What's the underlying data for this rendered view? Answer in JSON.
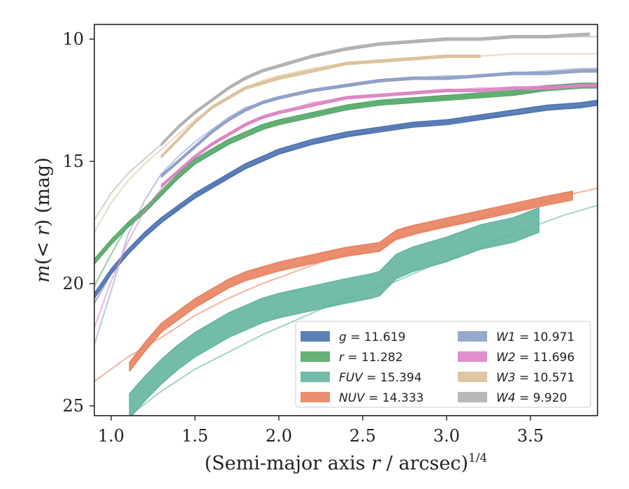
{
  "chart_data": {
    "type": "line",
    "xlabel": "(Semi-major axis r / arcsec)^(1/4)",
    "ylabel": "m(< r) (mag)",
    "xlim": [
      0.9,
      3.9
    ],
    "ylim": [
      25.4,
      9.4
    ],
    "y_inverted": true,
    "xticks": [
      1.0,
      1.5,
      2.0,
      2.5,
      3.0,
      3.5
    ],
    "xtick_labels": [
      "1.0",
      "1.5",
      "2.0",
      "2.5",
      "3.0",
      "3.5"
    ],
    "yticks": [
      10,
      15,
      20,
      25
    ],
    "ytick_labels": [
      "10",
      "15",
      "20",
      "25"
    ],
    "grid": false,
    "legend_position": "lower-right",
    "series": [
      {
        "name": "g = 11.619",
        "label_var": "g",
        "label_val": "11.619",
        "color": "#4c72b0",
        "x": [
          0.9,
          1.0,
          1.1,
          1.2,
          1.3,
          1.4,
          1.5,
          1.6,
          1.7,
          1.8,
          1.9,
          2.0,
          2.2,
          2.4,
          2.6,
          2.8,
          3.0,
          3.2,
          3.4,
          3.6,
          3.8,
          3.9
        ],
        "y": [
          20.5,
          19.5,
          18.7,
          18.0,
          17.4,
          16.9,
          16.4,
          16.0,
          15.6,
          15.2,
          14.9,
          14.6,
          14.2,
          13.9,
          13.7,
          13.5,
          13.4,
          13.2,
          13.0,
          12.8,
          12.7,
          12.6
        ],
        "band": 0.1,
        "model": [
          20.8,
          19.6,
          18.8,
          18.1,
          17.5,
          16.9,
          16.5,
          16.0,
          15.6,
          15.3,
          15.0,
          14.7,
          14.3,
          14.0,
          13.7,
          13.5,
          13.4,
          13.2,
          13.1,
          12.9,
          12.8,
          12.7
        ]
      },
      {
        "name": "r = 11.282",
        "label_var": "r",
        "label_val": "11.282",
        "color": "#55a868",
        "x": [
          0.9,
          1.0,
          1.1,
          1.2,
          1.3,
          1.4,
          1.5,
          1.6,
          1.7,
          1.8,
          1.9,
          2.0,
          2.2,
          2.4,
          2.6,
          2.8,
          3.0,
          3.2,
          3.4,
          3.6,
          3.8,
          3.9
        ],
        "y": [
          19.1,
          18.3,
          17.6,
          17.0,
          16.3,
          15.6,
          15.0,
          14.6,
          14.2,
          13.9,
          13.6,
          13.4,
          13.1,
          12.8,
          12.6,
          12.5,
          12.4,
          12.3,
          12.2,
          12.0,
          11.9,
          11.9
        ],
        "band": 0.1,
        "model": [
          20.1,
          18.8,
          17.6,
          16.9,
          16.3,
          15.7,
          15.1,
          14.7,
          14.3,
          14.0,
          13.7,
          13.4,
          13.1,
          12.8,
          12.6,
          12.5,
          12.4,
          12.3,
          12.2,
          12.1,
          12.0,
          11.9
        ]
      },
      {
        "name": "FUV = 15.394",
        "label_var": "FUV",
        "label_val": "15.394",
        "color": "#64b5a0",
        "x": [
          1.11,
          1.2,
          1.3,
          1.4,
          1.5,
          1.6,
          1.7,
          1.8,
          1.9,
          2.0,
          2.2,
          2.4,
          2.55,
          2.6,
          2.7,
          2.8,
          3.0,
          3.2,
          3.4,
          3.55
        ],
        "y": [
          25.0,
          24.3,
          23.6,
          23.0,
          22.5,
          22.1,
          21.7,
          21.4,
          21.1,
          20.9,
          20.6,
          20.3,
          20.1,
          20.0,
          19.3,
          19.0,
          18.6,
          18.1,
          17.8,
          17.4
        ],
        "band": 0.5,
        "model_x": [
          1.11,
          1.3,
          1.5,
          1.7,
          1.9,
          2.1,
          2.3,
          2.5,
          2.7,
          2.9,
          3.1,
          3.3,
          3.5,
          3.7,
          3.9
        ],
        "model": [
          25.4,
          24.4,
          23.5,
          22.8,
          22.1,
          21.5,
          20.9,
          20.4,
          19.9,
          19.3,
          18.8,
          18.2,
          17.7,
          17.2,
          16.8
        ]
      },
      {
        "name": "NUV = 14.333",
        "label_var": "NUV",
        "label_val": "14.333",
        "color": "#e8825f",
        "x": [
          1.11,
          1.2,
          1.3,
          1.4,
          1.5,
          1.6,
          1.7,
          1.8,
          1.9,
          2.0,
          2.2,
          2.4,
          2.6,
          2.7,
          2.8,
          3.0,
          3.2,
          3.4,
          3.6,
          3.75
        ],
        "y": [
          23.4,
          22.6,
          21.8,
          21.3,
          20.8,
          20.4,
          20.0,
          19.7,
          19.5,
          19.3,
          19.0,
          18.7,
          18.5,
          18.0,
          17.8,
          17.5,
          17.2,
          16.9,
          16.6,
          16.4
        ],
        "band": 0.18,
        "model_x": [
          0.9,
          1.1,
          1.3,
          1.5,
          1.7,
          1.9,
          2.1,
          2.3,
          2.5,
          2.7,
          2.9,
          3.1,
          3.3,
          3.5,
          3.7,
          3.9
        ],
        "model": [
          24.0,
          23.0,
          22.2,
          21.3,
          20.6,
          20.0,
          19.5,
          19.0,
          18.6,
          18.2,
          17.8,
          17.5,
          17.1,
          16.8,
          16.4,
          16.1
        ]
      },
      {
        "name": "W1 = 10.971",
        "label_var": "W1",
        "label_val": "10.971",
        "color": "#8c9ec8",
        "x": [
          1.3,
          1.4,
          1.5,
          1.6,
          1.7,
          1.8,
          1.9,
          2.0,
          2.2,
          2.4,
          2.6,
          2.8,
          3.0,
          3.2,
          3.4,
          3.6,
          3.8,
          3.9
        ],
        "y": [
          15.6,
          15.0,
          14.4,
          13.8,
          13.3,
          12.9,
          12.6,
          12.4,
          12.1,
          11.9,
          11.7,
          11.6,
          11.6,
          11.5,
          11.4,
          11.4,
          11.3,
          11.3
        ],
        "band": 0.05,
        "model_x": [
          0.9,
          1.0,
          1.1,
          1.2,
          1.3,
          1.4,
          1.5,
          1.6,
          1.7,
          1.8,
          1.9,
          2.0,
          2.2,
          2.4,
          2.6,
          2.8,
          3.0,
          3.2,
          3.4,
          3.6,
          3.8,
          3.9
        ],
        "model": [
          22.5,
          20.3,
          18.0,
          16.6,
          15.5,
          14.8,
          14.2,
          13.7,
          13.2,
          12.8,
          12.6,
          12.4,
          12.1,
          11.9,
          11.7,
          11.6,
          11.5,
          11.5,
          11.4,
          11.3,
          11.2,
          11.2
        ]
      },
      {
        "name": "W2 = 11.696",
        "label_var": "W2",
        "label_val": "11.696",
        "color": "#dd84c4",
        "x": [
          1.3,
          1.4,
          1.5,
          1.6,
          1.7,
          1.8,
          1.9,
          2.0,
          2.2,
          2.4,
          2.6,
          2.8,
          3.0,
          3.2,
          3.4,
          3.6,
          3.8,
          3.9
        ],
        "y": [
          16.0,
          15.4,
          14.8,
          14.3,
          13.9,
          13.5,
          13.2,
          13.0,
          12.7,
          12.4,
          12.3,
          12.2,
          12.1,
          12.1,
          12.0,
          12.0,
          11.9,
          11.9
        ],
        "band": 0.05,
        "model_x": [
          0.9,
          1.0,
          1.1,
          1.2,
          1.3,
          1.4,
          1.5,
          1.6,
          1.7,
          1.8,
          1.9,
          2.0,
          2.2,
          2.4,
          2.6,
          2.8,
          3.0,
          3.2,
          3.4,
          3.6,
          3.8,
          3.9
        ],
        "model": [
          21.8,
          19.9,
          18.3,
          17.0,
          16.1,
          15.4,
          14.8,
          14.3,
          13.9,
          13.5,
          13.2,
          13.0,
          12.6,
          12.4,
          12.3,
          12.2,
          12.1,
          12.0,
          12.0,
          11.9,
          11.9,
          11.8
        ]
      },
      {
        "name": "W3 = 10.571",
        "label_var": "W3",
        "label_val": "10.571",
        "color": "#dcc19a",
        "x": [
          1.3,
          1.4,
          1.5,
          1.6,
          1.7,
          1.8,
          1.9,
          2.0,
          2.2,
          2.4,
          2.6,
          2.8,
          3.0,
          3.2
        ],
        "y": [
          14.8,
          14.1,
          13.4,
          12.8,
          12.4,
          12.0,
          11.8,
          11.6,
          11.3,
          11.0,
          10.9,
          10.8,
          10.7,
          10.7
        ],
        "band": 0.05,
        "model_x": [
          0.9,
          1.0,
          1.1,
          1.2,
          1.3,
          1.4,
          1.5,
          1.6,
          1.7,
          1.8,
          1.9,
          2.0,
          2.2,
          2.4,
          2.6,
          2.8,
          3.0,
          3.2,
          3.4,
          3.6,
          3.8,
          3.9
        ],
        "model": [
          17.9,
          16.7,
          15.8,
          15.1,
          14.5,
          13.9,
          13.3,
          12.8,
          12.4,
          12.0,
          11.7,
          11.5,
          11.2,
          11.0,
          10.9,
          10.8,
          10.7,
          10.7,
          10.6,
          10.6,
          10.6,
          10.6
        ]
      },
      {
        "name": "W4 = 9.920",
        "label_var": "W4",
        "label_val": "9.920",
        "color": "#b0b0b0",
        "x": [
          1.3,
          1.4,
          1.5,
          1.6,
          1.7,
          1.8,
          1.9,
          2.0,
          2.2,
          2.4,
          2.6,
          2.8,
          3.0,
          3.2,
          3.4,
          3.6,
          3.85
        ],
        "y": [
          14.3,
          13.6,
          13.0,
          12.5,
          12.0,
          11.6,
          11.3,
          11.1,
          10.7,
          10.4,
          10.2,
          10.1,
          10.0,
          10.0,
          9.9,
          9.9,
          9.8
        ],
        "band": 0.05,
        "model_x": [
          0.9,
          1.0,
          1.1,
          1.2,
          1.3,
          1.4,
          1.5,
          1.6,
          1.7,
          1.8,
          1.9,
          2.0,
          2.2,
          2.4,
          2.6,
          2.8,
          3.0,
          3.2,
          3.4,
          3.6,
          3.8,
          3.9
        ],
        "model": [
          17.4,
          16.3,
          15.5,
          14.9,
          14.3,
          13.6,
          13.0,
          12.5,
          12.0,
          11.6,
          11.3,
          11.1,
          10.7,
          10.4,
          10.2,
          10.1,
          10.0,
          10.0,
          9.9,
          9.9,
          9.9,
          9.9
        ]
      }
    ]
  }
}
